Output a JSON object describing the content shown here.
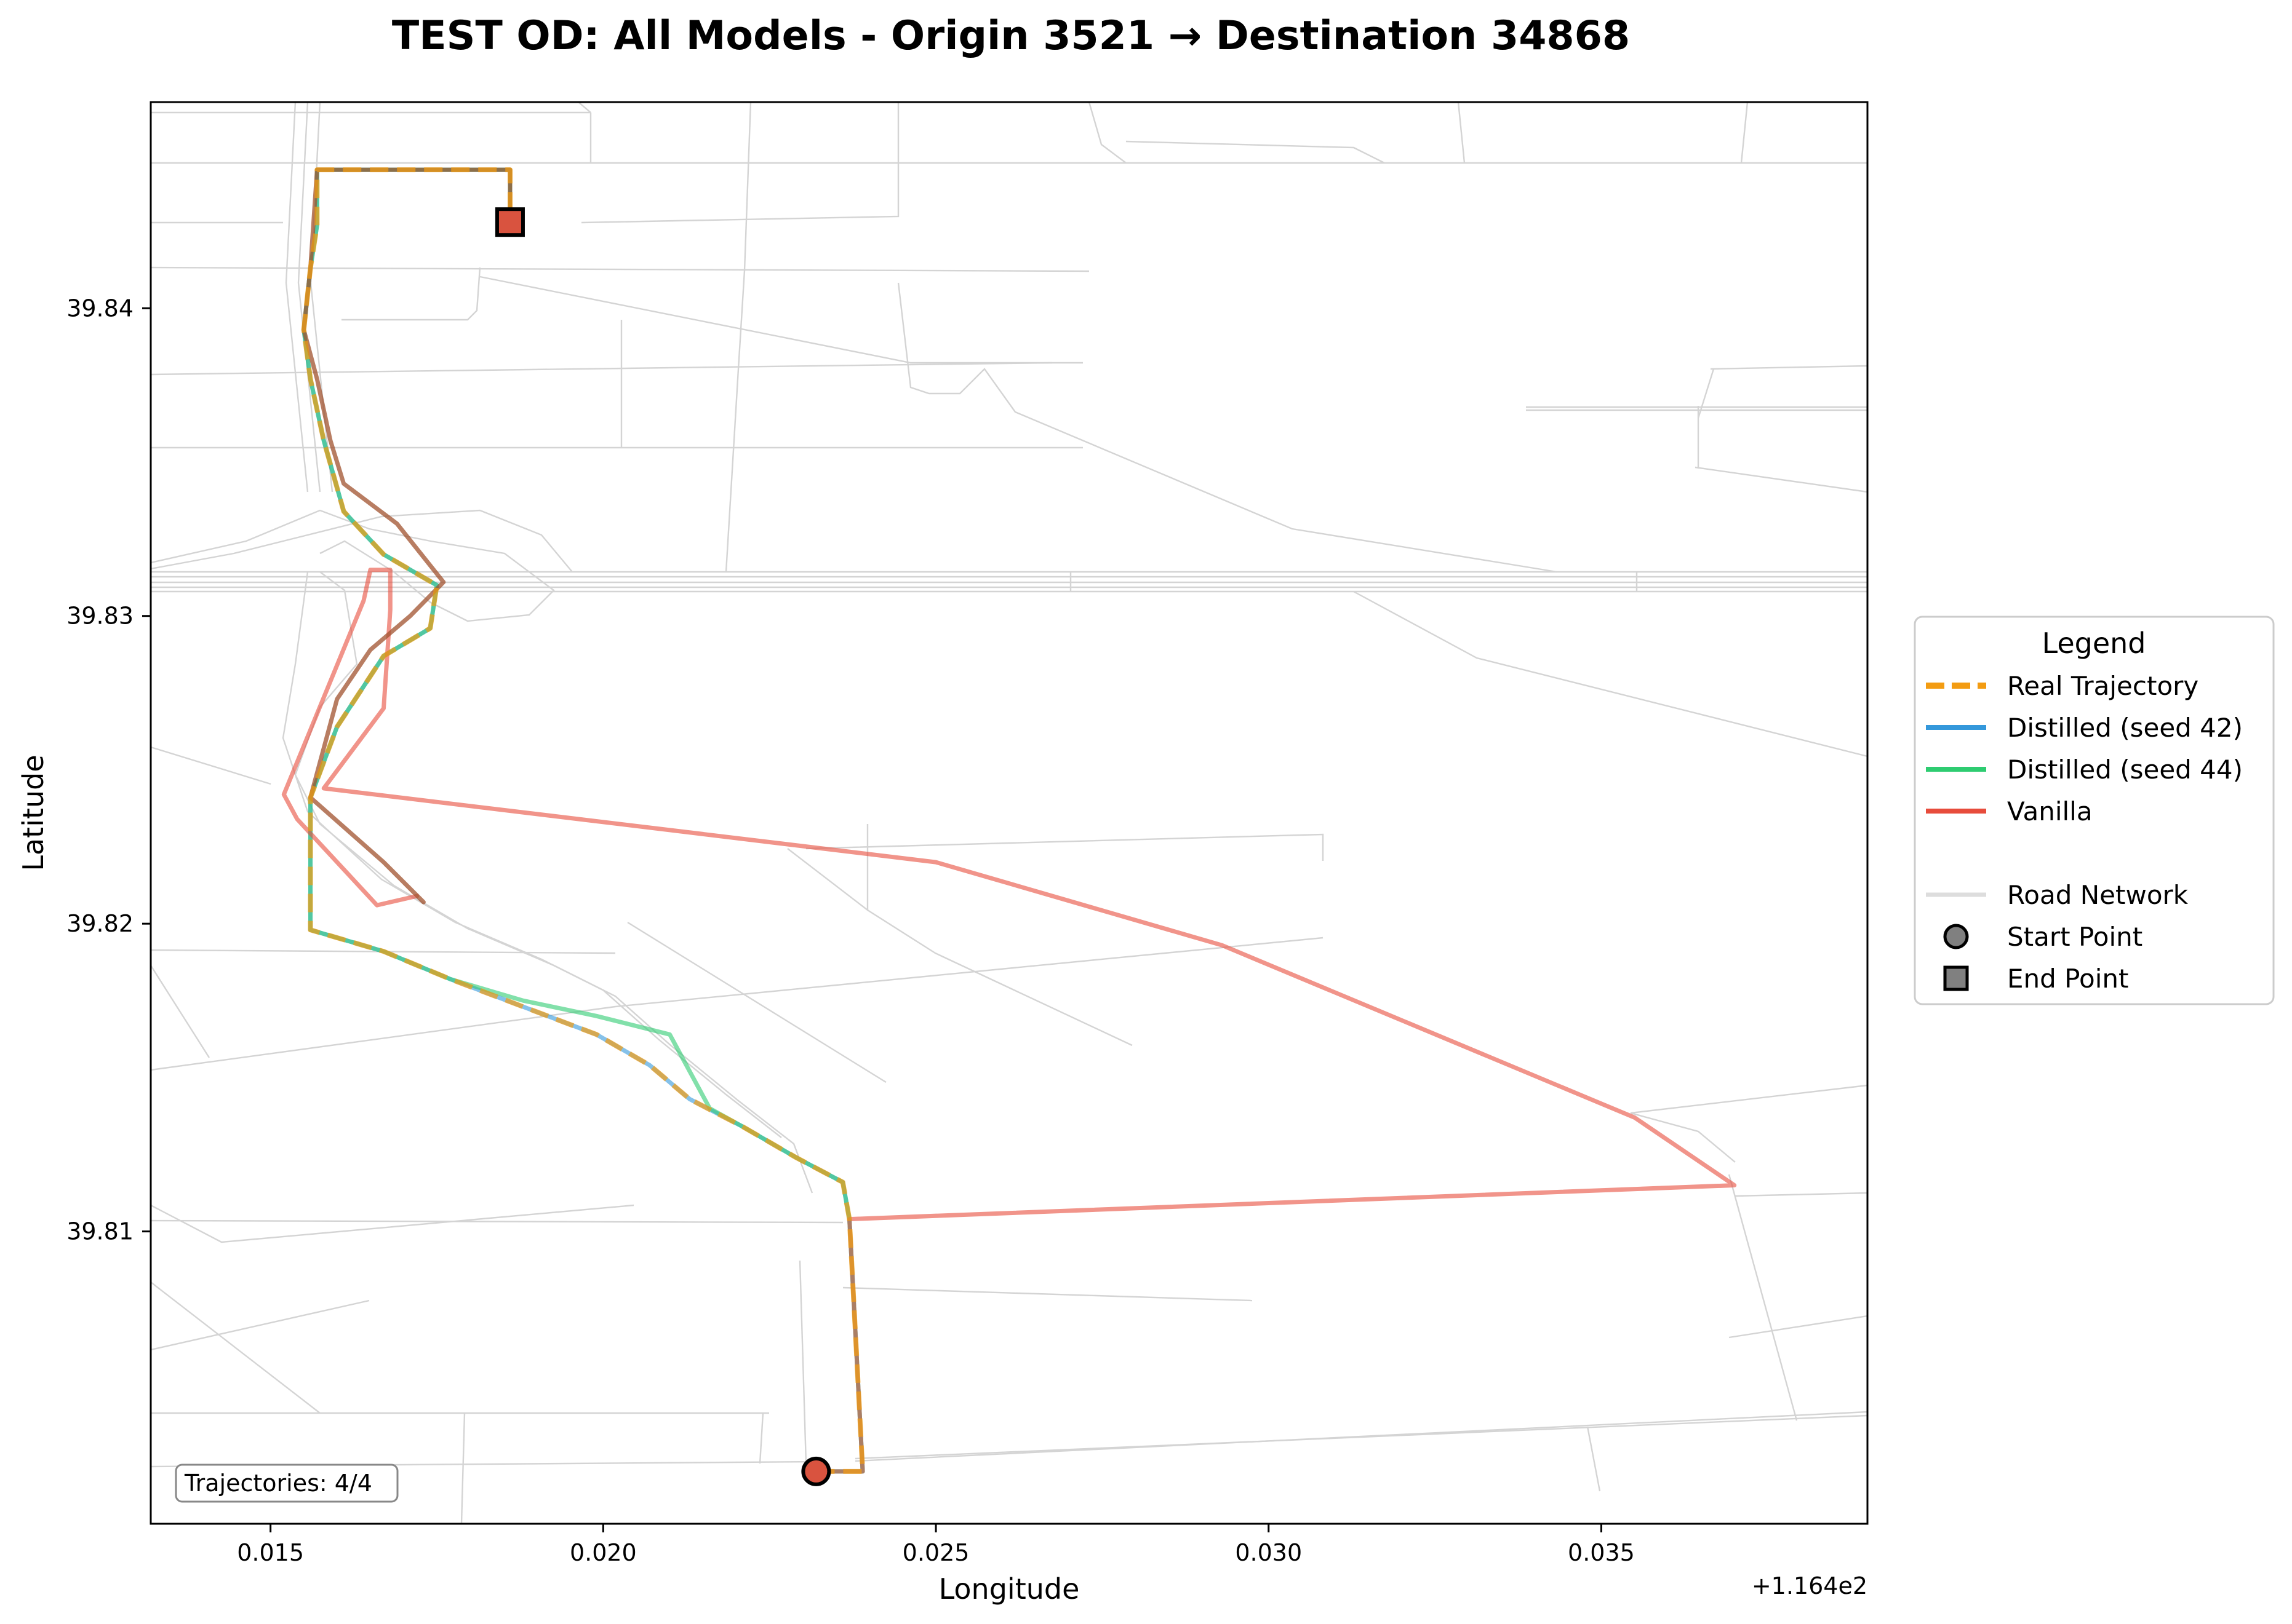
{
  "chart_data": {
    "type": "line",
    "title": "TEST OD: All Models - Origin 3521 → Destination 34868",
    "xlabel": "Longitude",
    "ylabel": "Latitude",
    "x_offset_label": "+1.164e2",
    "xlim": [
      116.4132,
      116.439
    ],
    "ylim": [
      39.8005,
      39.8467
    ],
    "x_ticks": [
      116.415,
      116.42,
      116.425,
      116.43,
      116.435
    ],
    "x_tick_labels": [
      "0.015",
      "0.020",
      "0.025",
      "0.030",
      "0.035"
    ],
    "y_ticks": [
      39.81,
      39.82,
      39.83,
      39.84
    ],
    "y_tick_labels": [
      "39.81",
      "39.82",
      "39.83",
      "39.84"
    ],
    "grid": false,
    "legend_position": "right",
    "legend_title": "Legend",
    "legend": [
      {
        "label": "Real Trajectory",
        "style": "dashed-line",
        "color": "#f39c12"
      },
      {
        "label": "Distilled (seed 42)",
        "style": "line",
        "color": "#3498db"
      },
      {
        "label": "Distilled (seed 44)",
        "style": "line",
        "color": "#2ecc71"
      },
      {
        "label": "Vanilla",
        "style": "line",
        "color": "#e74c3c"
      },
      {
        "label": "",
        "style": "spacer",
        "color": ""
      },
      {
        "label": "Road Network",
        "style": "road",
        "color": "#dddddd"
      },
      {
        "label": "Start Point",
        "style": "circle",
        "color": "#808080"
      },
      {
        "label": "End Point",
        "style": "square",
        "color": "#808080"
      }
    ],
    "annotation": "Trajectories: 4/4",
    "series": [
      {
        "name": "Distilled (seed 42)",
        "color": "#3498db",
        "points": [
          [
            116.4232,
            39.8022
          ],
          [
            116.4239,
            39.8022
          ],
          [
            116.4237,
            39.8104
          ],
          [
            116.4236,
            39.8116
          ],
          [
            116.4229,
            39.8124
          ],
          [
            116.4221,
            39.8134
          ],
          [
            116.4213,
            39.8143
          ],
          [
            116.4207,
            39.8154
          ],
          [
            116.4199,
            39.8164
          ],
          [
            116.4188,
            39.8173
          ],
          [
            116.4177,
            39.8182
          ],
          [
            116.4167,
            39.8191
          ],
          [
            116.4156,
            39.8198
          ],
          [
            116.4156,
            39.8241
          ],
          [
            116.416,
            39.8264
          ],
          [
            116.4167,
            39.8287
          ],
          [
            116.4174,
            39.8296
          ],
          [
            116.4175,
            39.831
          ],
          [
            116.4167,
            39.832
          ],
          [
            116.4161,
            39.8334
          ],
          [
            116.4158,
            39.8357
          ],
          [
            116.4156,
            39.8377
          ],
          [
            116.4155,
            39.8393
          ],
          [
            116.4156,
            39.8413
          ],
          [
            116.4157,
            39.8427
          ],
          [
            116.4157,
            39.8445
          ],
          [
            116.4175,
            39.8445
          ],
          [
            116.4186,
            39.8445
          ],
          [
            116.4186,
            39.8428
          ]
        ]
      },
      {
        "name": "Distilled (seed 44)",
        "color": "#2ecc71",
        "points": [
          [
            116.4232,
            39.8022
          ],
          [
            116.4239,
            39.8022
          ],
          [
            116.4237,
            39.8104
          ],
          [
            116.4236,
            39.8116
          ],
          [
            116.4229,
            39.8124
          ],
          [
            116.4221,
            39.8134
          ],
          [
            116.4216,
            39.814
          ],
          [
            116.421,
            39.8164
          ],
          [
            116.4199,
            39.817
          ],
          [
            116.4188,
            39.8175
          ],
          [
            116.4177,
            39.8182
          ],
          [
            116.4167,
            39.8191
          ],
          [
            116.4156,
            39.8198
          ],
          [
            116.4156,
            39.8241
          ],
          [
            116.416,
            39.8264
          ],
          [
            116.4167,
            39.8287
          ],
          [
            116.4174,
            39.8296
          ],
          [
            116.4175,
            39.831
          ],
          [
            116.4167,
            39.832
          ],
          [
            116.4161,
            39.8334
          ],
          [
            116.4158,
            39.8357
          ],
          [
            116.4156,
            39.8377
          ],
          [
            116.4155,
            39.8393
          ],
          [
            116.4156,
            39.8413
          ],
          [
            116.4157,
            39.8427
          ],
          [
            116.4157,
            39.8445
          ],
          [
            116.4175,
            39.8445
          ],
          [
            116.4186,
            39.8445
          ],
          [
            116.4186,
            39.8428
          ]
        ]
      },
      {
        "name": "Vanilla",
        "color": "#e74c3c",
        "points": [
          [
            116.4232,
            39.8022
          ],
          [
            116.4239,
            39.8022
          ],
          [
            116.4237,
            39.8104
          ],
          [
            116.437,
            39.8115
          ],
          [
            116.4355,
            39.8137
          ],
          [
            116.4293,
            39.8193
          ],
          [
            116.425,
            39.822
          ],
          [
            116.4158,
            39.8244
          ],
          [
            116.4167,
            39.827
          ],
          [
            116.4168,
            39.8302
          ],
          [
            116.4168,
            39.8315
          ],
          [
            116.4165,
            39.8315
          ],
          [
            116.4164,
            39.8305
          ],
          [
            116.4152,
            39.8242
          ],
          [
            116.4154,
            39.8234
          ],
          [
            116.4166,
            39.8206
          ],
          [
            116.4172,
            39.8209
          ]
        ]
      },
      {
        "name": "Vanilla (return)",
        "color": "#a0522d",
        "points": [
          [
            116.4186,
            39.8428
          ],
          [
            116.4186,
            39.8445
          ],
          [
            116.4175,
            39.8445
          ],
          [
            116.4157,
            39.8445
          ],
          [
            116.4156,
            39.8413
          ],
          [
            116.4155,
            39.8393
          ],
          [
            116.4157,
            39.8377
          ],
          [
            116.4159,
            39.8357
          ],
          [
            116.4161,
            39.8343
          ],
          [
            116.4169,
            39.833
          ],
          [
            116.4176,
            39.8311
          ],
          [
            116.4171,
            39.83
          ],
          [
            116.4165,
            39.8289
          ],
          [
            116.416,
            39.8273
          ],
          [
            116.4156,
            39.8241
          ],
          [
            116.4167,
            39.822
          ],
          [
            116.4173,
            39.8207
          ]
        ]
      },
      {
        "name": "Real Trajectory",
        "color": "#f39c12",
        "points": [
          [
            116.4232,
            39.8022
          ],
          [
            116.4239,
            39.8022
          ],
          [
            116.4237,
            39.8104
          ],
          [
            116.4236,
            39.8116
          ],
          [
            116.4229,
            39.8124
          ],
          [
            116.4221,
            39.8134
          ],
          [
            116.4213,
            39.8143
          ],
          [
            116.4207,
            39.8154
          ],
          [
            116.4199,
            39.8164
          ],
          [
            116.4188,
            39.8173
          ],
          [
            116.4177,
            39.8182
          ],
          [
            116.4167,
            39.8191
          ],
          [
            116.4156,
            39.8198
          ],
          [
            116.4156,
            39.8241
          ],
          [
            116.416,
            39.8264
          ],
          [
            116.4167,
            39.8287
          ],
          [
            116.4174,
            39.8296
          ],
          [
            116.4175,
            39.831
          ],
          [
            116.4167,
            39.832
          ],
          [
            116.4161,
            39.8334
          ],
          [
            116.4158,
            39.8357
          ],
          [
            116.4156,
            39.8377
          ],
          [
            116.4155,
            39.8393
          ],
          [
            116.4156,
            39.8413
          ],
          [
            116.4157,
            39.8427
          ],
          [
            116.4157,
            39.8445
          ],
          [
            116.4175,
            39.8445
          ],
          [
            116.4186,
            39.8445
          ],
          [
            116.4186,
            39.8428
          ]
        ]
      }
    ],
    "start_point": [
      116.4232,
      39.8022
    ],
    "end_point": [
      116.4186,
      39.8428
    ],
    "start_color": "#d9533f",
    "end_color": "#d9533f"
  }
}
